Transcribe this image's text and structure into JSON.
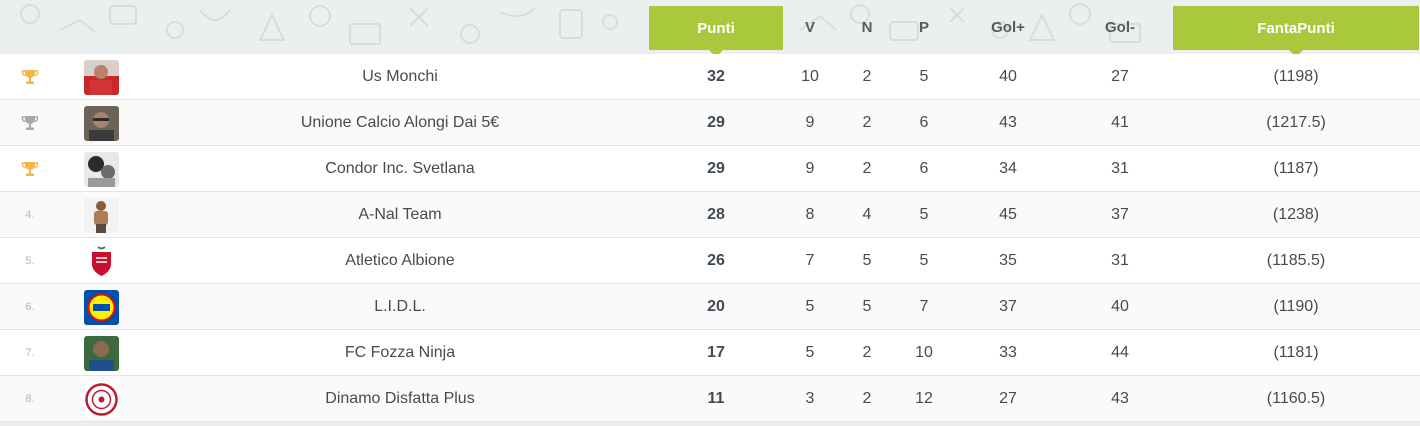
{
  "header": {
    "punti": "Punti",
    "v": "V",
    "n": "N",
    "p": "P",
    "gol_plus": "Gol+",
    "gol_minus": "Gol-",
    "fantapunti": "FantaPunti"
  },
  "colors": {
    "accent": "#a9c83b",
    "gold": "#f3b54a",
    "silver": "#a8a8a8"
  },
  "rows": [
    {
      "rank": "",
      "rank_icon": "trophy-gold-icon",
      "team": "Us Monchi",
      "punti": "32",
      "v": "10",
      "n": "2",
      "p": "5",
      "gf": "40",
      "gs": "27",
      "fanta": "(1198)"
    },
    {
      "rank": "",
      "rank_icon": "trophy-silver-icon",
      "team": "Unione Calcio Alongi Dai 5€",
      "punti": "29",
      "v": "9",
      "n": "2",
      "p": "6",
      "gf": "43",
      "gs": "41",
      "fanta": "(1217.5)"
    },
    {
      "rank": "",
      "rank_icon": "trophy-bronze-icon",
      "team": "Condor Inc. Svetlana",
      "punti": "29",
      "v": "9",
      "n": "2",
      "p": "6",
      "gf": "34",
      "gs": "31",
      "fanta": "(1187)"
    },
    {
      "rank": "4.",
      "team": "A-Nal Team",
      "punti": "28",
      "v": "8",
      "n": "4",
      "p": "5",
      "gf": "45",
      "gs": "37",
      "fanta": "(1238)"
    },
    {
      "rank": "5.",
      "team": "Atletico Albione",
      "punti": "26",
      "v": "7",
      "n": "5",
      "p": "5",
      "gf": "35",
      "gs": "31",
      "fanta": "(1185.5)"
    },
    {
      "rank": "6.",
      "team": "L.I.D.L.",
      "punti": "20",
      "v": "5",
      "n": "5",
      "p": "7",
      "gf": "37",
      "gs": "40",
      "fanta": "(1190)"
    },
    {
      "rank": "7.",
      "team": "FC Fozza Ninja",
      "punti": "17",
      "v": "5",
      "n": "2",
      "p": "10",
      "gf": "33",
      "gs": "44",
      "fanta": "(1181)"
    },
    {
      "rank": "8.",
      "team": "Dinamo Disfatta Plus",
      "punti": "11",
      "v": "3",
      "n": "2",
      "p": "12",
      "gf": "27",
      "gs": "43",
      "fanta": "(1160.5)"
    }
  ]
}
